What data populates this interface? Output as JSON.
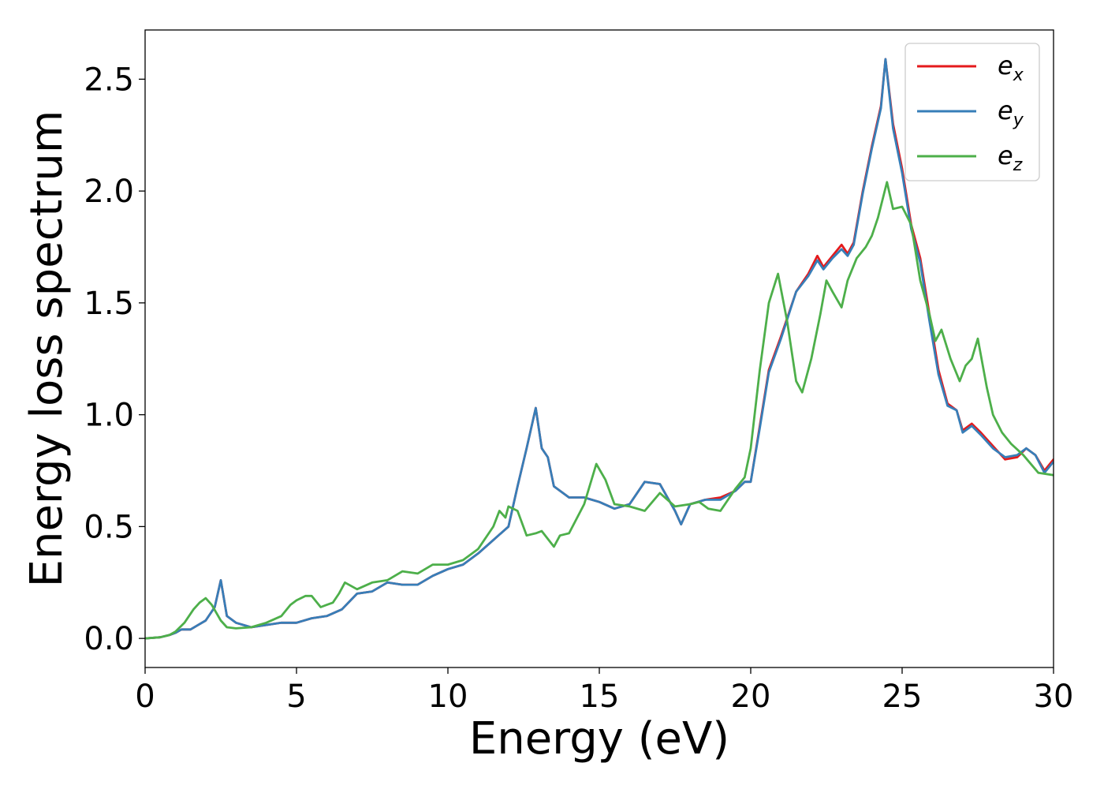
{
  "chart_data": {
    "type": "line",
    "title": "",
    "xlabel": "Energy (eV)",
    "ylabel": "Energy loss spectrum",
    "xlim": [
      0,
      30
    ],
    "ylim": [
      -0.13,
      2.72
    ],
    "xticks": [
      0,
      5,
      10,
      15,
      20,
      25,
      30
    ],
    "yticks": [
      0.0,
      0.5,
      1.0,
      1.5,
      2.0,
      2.5
    ],
    "xtick_labels": [
      "0",
      "5",
      "10",
      "15",
      "20",
      "25",
      "30"
    ],
    "ytick_labels": [
      "0.0",
      "0.5",
      "1.0",
      "1.5",
      "2.0",
      "2.5"
    ],
    "grid": false,
    "legend_position": "top-right",
    "series": [
      {
        "name": "e_x",
        "label_base": "e",
        "label_sub": "x",
        "color": "#e41a1c",
        "x": [
          0,
          0.5,
          0.8,
          1.0,
          1.2,
          1.5,
          2.0,
          2.3,
          2.5,
          2.7,
          3.0,
          3.5,
          4.0,
          4.5,
          5.0,
          5.5,
          6.0,
          6.5,
          7.0,
          7.5,
          8.0,
          8.5,
          9.0,
          9.5,
          10.0,
          10.5,
          11.0,
          11.5,
          12.0,
          12.3,
          12.6,
          12.9,
          13.1,
          13.3,
          13.5,
          14.0,
          14.5,
          15.0,
          15.5,
          16.0,
          16.5,
          17.0,
          17.5,
          17.7,
          18.0,
          18.5,
          19.0,
          19.5,
          19.8,
          20.0,
          20.3,
          20.6,
          21.0,
          21.5,
          21.9,
          22.2,
          22.4,
          22.7,
          23.0,
          23.2,
          23.4,
          23.7,
          24.0,
          24.3,
          24.45,
          24.7,
          25.0,
          25.3,
          25.6,
          25.9,
          26.2,
          26.5,
          26.8,
          27.0,
          27.3,
          27.6,
          28.0,
          28.4,
          28.8,
          29.1,
          29.4,
          29.7,
          30.0
        ],
        "y": [
          0.0,
          0.005,
          0.015,
          0.025,
          0.04,
          0.04,
          0.08,
          0.14,
          0.26,
          0.1,
          0.07,
          0.05,
          0.06,
          0.07,
          0.07,
          0.09,
          0.1,
          0.13,
          0.2,
          0.21,
          0.25,
          0.24,
          0.24,
          0.28,
          0.31,
          0.33,
          0.38,
          0.44,
          0.5,
          0.68,
          0.85,
          1.03,
          0.85,
          0.81,
          0.68,
          0.63,
          0.63,
          0.61,
          0.58,
          0.6,
          0.7,
          0.69,
          0.57,
          0.51,
          0.6,
          0.62,
          0.63,
          0.66,
          0.7,
          0.7,
          0.95,
          1.2,
          1.35,
          1.55,
          1.63,
          1.71,
          1.66,
          1.71,
          1.76,
          1.72,
          1.77,
          2.0,
          2.2,
          2.38,
          2.59,
          2.3,
          2.1,
          1.85,
          1.7,
          1.45,
          1.2,
          1.05,
          1.02,
          0.93,
          0.96,
          0.92,
          0.86,
          0.8,
          0.81,
          0.85,
          0.82,
          0.75,
          0.8
        ]
      },
      {
        "name": "e_y",
        "label_base": "e",
        "label_sub": "y",
        "color": "#377eb8",
        "x": [
          0,
          0.5,
          0.8,
          1.0,
          1.2,
          1.5,
          2.0,
          2.3,
          2.5,
          2.7,
          3.0,
          3.5,
          4.0,
          4.5,
          5.0,
          5.5,
          6.0,
          6.5,
          7.0,
          7.5,
          8.0,
          8.5,
          9.0,
          9.5,
          10.0,
          10.5,
          11.0,
          11.5,
          12.0,
          12.3,
          12.6,
          12.9,
          13.1,
          13.3,
          13.5,
          14.0,
          14.5,
          15.0,
          15.5,
          16.0,
          16.5,
          17.0,
          17.5,
          17.7,
          18.0,
          18.5,
          19.0,
          19.5,
          19.8,
          20.0,
          20.3,
          20.6,
          21.0,
          21.5,
          21.9,
          22.2,
          22.4,
          22.7,
          23.0,
          23.2,
          23.4,
          23.7,
          24.0,
          24.3,
          24.45,
          24.7,
          25.0,
          25.3,
          25.6,
          25.9,
          26.2,
          26.5,
          26.8,
          27.0,
          27.3,
          27.6,
          28.0,
          28.4,
          28.8,
          29.1,
          29.4,
          29.7,
          30.0
        ],
        "y": [
          0.0,
          0.005,
          0.015,
          0.025,
          0.04,
          0.04,
          0.08,
          0.14,
          0.26,
          0.1,
          0.07,
          0.05,
          0.06,
          0.07,
          0.07,
          0.09,
          0.1,
          0.13,
          0.2,
          0.21,
          0.25,
          0.24,
          0.24,
          0.28,
          0.31,
          0.33,
          0.38,
          0.44,
          0.5,
          0.68,
          0.85,
          1.03,
          0.85,
          0.81,
          0.68,
          0.63,
          0.63,
          0.61,
          0.58,
          0.6,
          0.7,
          0.69,
          0.57,
          0.51,
          0.6,
          0.62,
          0.62,
          0.66,
          0.7,
          0.7,
          0.94,
          1.19,
          1.34,
          1.55,
          1.62,
          1.69,
          1.65,
          1.7,
          1.74,
          1.71,
          1.76,
          1.99,
          2.19,
          2.37,
          2.59,
          2.28,
          2.08,
          1.83,
          1.68,
          1.42,
          1.18,
          1.04,
          1.02,
          0.92,
          0.95,
          0.91,
          0.85,
          0.81,
          0.82,
          0.85,
          0.82,
          0.74,
          0.79
        ]
      },
      {
        "name": "e_z",
        "label_base": "e",
        "label_sub": "z",
        "color": "#4daf4a",
        "x": [
          0,
          0.5,
          0.8,
          1.0,
          1.3,
          1.6,
          1.8,
          2.0,
          2.2,
          2.5,
          2.7,
          3.0,
          3.5,
          4.0,
          4.5,
          4.8,
          5.0,
          5.3,
          5.5,
          5.8,
          6.0,
          6.2,
          6.4,
          6.6,
          7.0,
          7.5,
          8.0,
          8.5,
          9.0,
          9.5,
          10.0,
          10.5,
          11.0,
          11.5,
          11.7,
          11.9,
          12.0,
          12.3,
          12.6,
          12.9,
          13.1,
          13.5,
          13.7,
          14.0,
          14.5,
          14.9,
          15.2,
          15.5,
          16.0,
          16.5,
          17.0,
          17.5,
          18.0,
          18.3,
          18.6,
          19.0,
          19.5,
          19.8,
          20.0,
          20.3,
          20.6,
          20.9,
          21.2,
          21.5,
          21.7,
          22.0,
          22.3,
          22.5,
          22.7,
          23.0,
          23.2,
          23.5,
          23.8,
          24.0,
          24.2,
          24.5,
          24.7,
          25.0,
          25.3,
          25.6,
          25.9,
          26.1,
          26.3,
          26.6,
          26.9,
          27.1,
          27.3,
          27.5,
          27.8,
          28.0,
          28.3,
          28.6,
          29.0,
          29.5,
          30.0
        ],
        "y": [
          0.0,
          0.005,
          0.015,
          0.03,
          0.07,
          0.13,
          0.16,
          0.18,
          0.15,
          0.08,
          0.05,
          0.045,
          0.05,
          0.07,
          0.1,
          0.15,
          0.17,
          0.19,
          0.19,
          0.14,
          0.15,
          0.16,
          0.2,
          0.25,
          0.22,
          0.25,
          0.26,
          0.3,
          0.29,
          0.33,
          0.33,
          0.35,
          0.4,
          0.5,
          0.57,
          0.54,
          0.59,
          0.57,
          0.46,
          0.47,
          0.48,
          0.41,
          0.46,
          0.47,
          0.6,
          0.78,
          0.71,
          0.6,
          0.59,
          0.57,
          0.65,
          0.59,
          0.6,
          0.61,
          0.58,
          0.57,
          0.67,
          0.72,
          0.85,
          1.2,
          1.5,
          1.63,
          1.42,
          1.15,
          1.1,
          1.25,
          1.45,
          1.6,
          1.55,
          1.48,
          1.6,
          1.7,
          1.75,
          1.8,
          1.88,
          2.04,
          1.92,
          1.93,
          1.85,
          1.6,
          1.45,
          1.33,
          1.38,
          1.25,
          1.15,
          1.22,
          1.25,
          1.34,
          1.12,
          1.0,
          0.92,
          0.87,
          0.82,
          0.74,
          0.73
        ]
      }
    ]
  }
}
